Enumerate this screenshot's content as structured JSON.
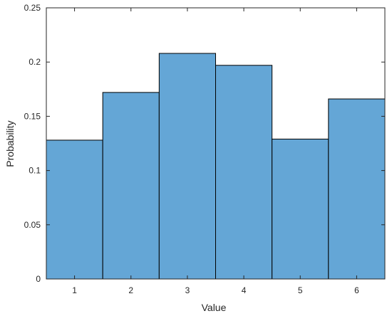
{
  "chart_data": {
    "type": "bar",
    "title": "",
    "xlabel": "Value",
    "ylabel": "Probability",
    "categories": [
      "1",
      "2",
      "3",
      "4",
      "5",
      "6"
    ],
    "values": [
      0.128,
      0.172,
      0.208,
      0.197,
      0.129,
      0.166
    ],
    "ylim": [
      0,
      0.25
    ],
    "xlim": [
      0.5,
      6.5
    ],
    "yticks": [
      "0",
      "0.05",
      "0.1",
      "0.15",
      "0.2",
      "0.25"
    ],
    "ytick_values": [
      0,
      0.05,
      0.1,
      0.15,
      0.2,
      0.25
    ],
    "grid": false,
    "bar_style": "histogram",
    "colors": {
      "bar_fill": "#64a6d6",
      "bar_edge": "#000000",
      "axis": "#262626"
    }
  }
}
